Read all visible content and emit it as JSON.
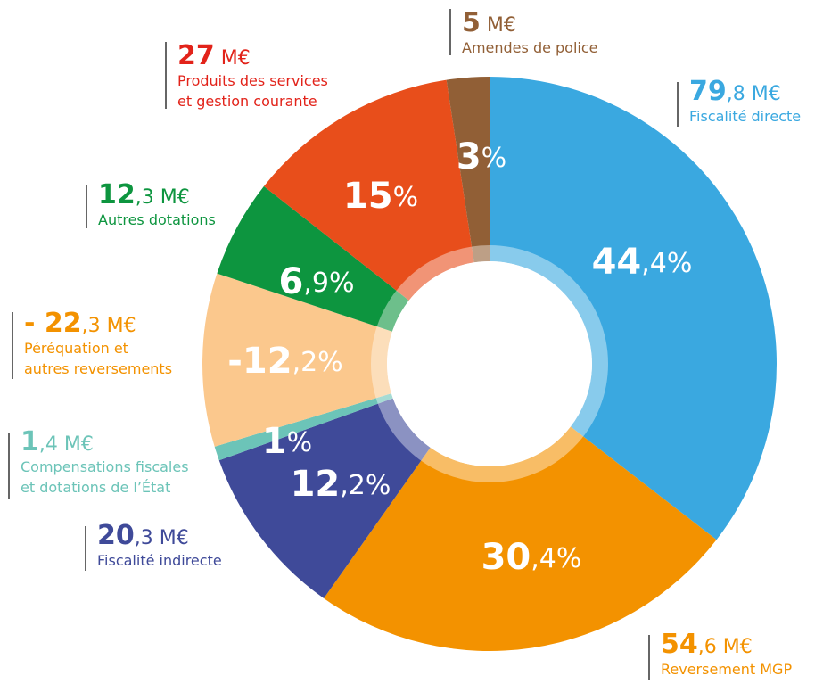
{
  "chart_data": {
    "type": "donut",
    "categories": [
      "Fiscalité directe",
      "Reversement MGP",
      "Fiscalité indirecte",
      "Compensations fiscales\net dotations de l’État",
      "Péréquation et\nautres reversements",
      "Autres dotations",
      "Produits des services\net gestion courante",
      "Amendes de police"
    ],
    "values": [
      44.4,
      30.4,
      12.2,
      1,
      -12.2,
      6.9,
      15,
      3
    ],
    "value_labels": [
      "44,4%",
      "30,4%",
      "12,2%",
      "1%",
      "-12,2%",
      "6,9%",
      "15%",
      "3%"
    ],
    "amounts": [
      79.8,
      54.6,
      20.3,
      1.4,
      -22.3,
      12.3,
      27,
      5
    ],
    "amount_labels": [
      "79,8 M€",
      "54,6 M€",
      "20,3 M€",
      "1,4 M€",
      "- 22,3 M€",
      "12,3 M€",
      "27 M€",
      "5 M€"
    ],
    "colors": [
      "#3aa8e0",
      "#f39200",
      "#3f4a99",
      "#6cc4b8",
      "#fbc88d",
      "#0d953f",
      "#e84e1b",
      "#915f36"
    ],
    "text_colors": [
      "#3aa8e0",
      "#f39200",
      "#3f4a99",
      "#6cc4b8",
      "#f39200",
      "#0d953f",
      "#e2231a",
      "#915f36"
    ]
  }
}
